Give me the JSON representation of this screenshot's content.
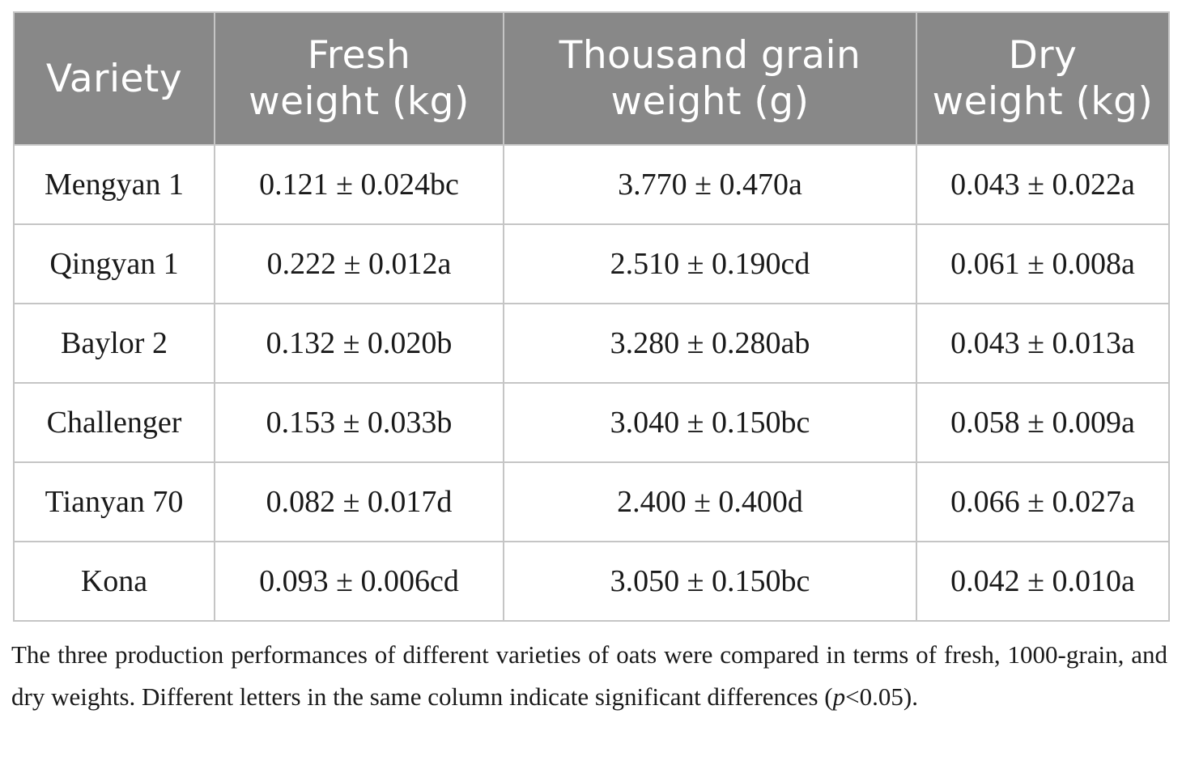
{
  "colors": {
    "page_bg": "#ffffff",
    "header_bg": "#888888",
    "header_text": "#ffffff",
    "body_text": "#1a1a1a",
    "border": "#c5c5c5"
  },
  "table": {
    "columns": [
      {
        "lines": [
          "Variety"
        ]
      },
      {
        "lines": [
          "Fresh",
          "weight (kg)"
        ]
      },
      {
        "lines": [
          "Thousand grain",
          "weight (g)"
        ]
      },
      {
        "lines": [
          "Dry",
          "weight (kg)"
        ]
      }
    ],
    "rows": [
      {
        "variety": "Mengyan 1",
        "fresh": "0.121 ± 0.024bc",
        "thousand": "3.770 ± 0.470a",
        "dry": "0.043 ± 0.022a"
      },
      {
        "variety": "Qingyan 1",
        "fresh": "0.222 ± 0.012a",
        "thousand": "2.510 ± 0.190cd",
        "dry": "0.061 ± 0.008a"
      },
      {
        "variety": "Baylor 2",
        "fresh": "0.132 ± 0.020b",
        "thousand": "3.280 ± 0.280ab",
        "dry": "0.043 ± 0.013a"
      },
      {
        "variety": "Challenger",
        "fresh": "0.153 ± 0.033b",
        "thousand": "3.040 ± 0.150bc",
        "dry": "0.058 ± 0.009a"
      },
      {
        "variety": "Tianyan 70",
        "fresh": "0.082 ± 0.017d",
        "thousand": "2.400 ± 0.400d",
        "dry": "0.066 ± 0.027a"
      },
      {
        "variety": "Kona",
        "fresh": "0.093 ± 0.006cd",
        "thousand": "3.050 ± 0.150bc",
        "dry": "0.042 ± 0.010a"
      }
    ]
  },
  "footnote": {
    "text_before_p": "The three production performances of different varieties of oats were compared in terms of fresh, 1000-grain, and dry weights. Different letters in the same column indicate significant differences (",
    "p_symbol": "p",
    "text_after_p": "<0.05)."
  },
  "chart_data": {
    "type": "table",
    "columns": [
      "Variety",
      "Fresh weight (kg)",
      "Thousand grain weight (g)",
      "Dry weight (kg)"
    ],
    "rows": [
      [
        "Mengyan 1",
        "0.121 ± 0.024bc",
        "3.770 ± 0.470a",
        "0.043 ± 0.022a"
      ],
      [
        "Qingyan 1",
        "0.222 ± 0.012a",
        "2.510 ± 0.190cd",
        "0.061 ± 0.008a"
      ],
      [
        "Baylor 2",
        "0.132 ± 0.020b",
        "3.280 ± 0.280ab",
        "0.043 ± 0.013a"
      ],
      [
        "Challenger",
        "0.153 ± 0.033b",
        "3.040 ± 0.150bc",
        "0.058 ± 0.009a"
      ],
      [
        "Tianyan 70",
        "0.082 ± 0.017d",
        "2.400 ± 0.400d",
        "0.066 ± 0.027a"
      ],
      [
        "Kona",
        "0.093 ± 0.006cd",
        "3.050 ± 0.150bc",
        "0.042 ± 0.010a"
      ]
    ]
  }
}
